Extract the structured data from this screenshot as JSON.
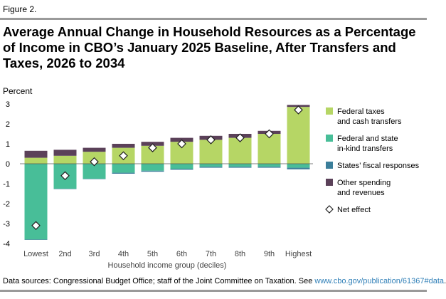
{
  "figure_label": "Figure 2.",
  "title": "Average Annual Change in Household Resources as a Percentage of Income in CBO’s January 2025 Baseline, After Transfers and Taxes, 2026 to 2034",
  "footer": {
    "text": "Data sources: Congressional Budget Office; staff of the Joint Committee on Taxation. See ",
    "link": "www.cbo.gov/publication/61367#data",
    "end": "."
  },
  "colors": {
    "federal_taxes": "#b6d665",
    "federal_state_inkind": "#48be98",
    "states_fiscal": "#3b7e9a",
    "other_spending": "#5b4159",
    "net_effect_marker": "#ffffff"
  },
  "chart_data": {
    "type": "bar",
    "stacked": true,
    "ylabel": "Percent",
    "xlabel": "Household income group (deciles)",
    "ylim": [
      -4,
      3
    ],
    "yticks": [
      3,
      2,
      1,
      0,
      -1,
      -2,
      -3,
      -4
    ],
    "categories": [
      "Lowest",
      "2nd",
      "3rd",
      "4th",
      "5th",
      "6th",
      "7th",
      "8th",
      "9th",
      "Highest"
    ],
    "series": [
      {
        "name": "Federal taxes and cash transfers",
        "legend_lines": [
          "Federal taxes",
          "and cash transfers"
        ],
        "color_key": "federal_taxes",
        "values": [
          0.3,
          0.4,
          0.6,
          0.8,
          0.9,
          1.1,
          1.2,
          1.3,
          1.5,
          2.85
        ]
      },
      {
        "name": "Federal and state in-kind transfers",
        "legend_lines": [
          "Federal and state",
          "in-kind transfers"
        ],
        "color_key": "federal_state_inkind",
        "values": [
          -3.8,
          -1.25,
          -0.75,
          -0.45,
          -0.35,
          -0.25,
          -0.15,
          -0.15,
          -0.15,
          -0.2
        ]
      },
      {
        "name": "States' fiscal responses",
        "legend_lines": [
          "States’ fiscal responses"
        ],
        "color_key": "states_fiscal",
        "values": [
          -0.02,
          -0.02,
          -0.02,
          -0.05,
          -0.05,
          -0.05,
          -0.05,
          -0.05,
          -0.05,
          -0.08
        ]
      },
      {
        "name": "Other spending and revenues",
        "legend_lines": [
          "Other spending",
          "and revenues"
        ],
        "color_key": "other_spending",
        "values": [
          0.35,
          0.3,
          0.2,
          0.2,
          0.2,
          0.2,
          0.2,
          0.2,
          0.15,
          0.1
        ]
      }
    ],
    "net_effect": {
      "name": "Net effect",
      "legend_lines": [
        "Net effect"
      ],
      "values": [
        -3.1,
        -0.6,
        0.1,
        0.4,
        0.8,
        1.0,
        1.2,
        1.3,
        1.5,
        2.7
      ]
    },
    "grid": false,
    "legend_position": "right"
  }
}
